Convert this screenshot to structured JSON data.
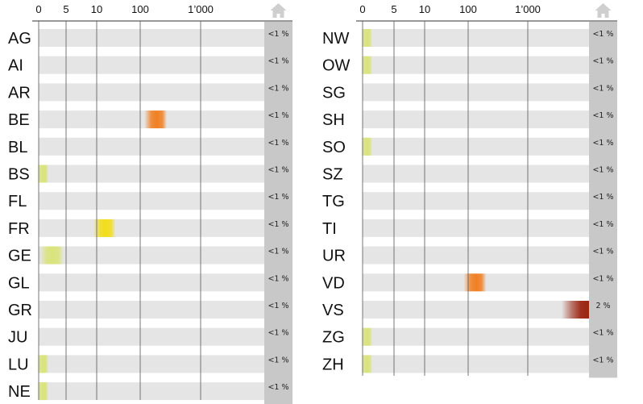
{
  "chart_data": {
    "type": "heatmap",
    "scale": "log-like (0, 5, 10, 100, 1'000)",
    "ticks": [
      "0",
      "5",
      "10",
      "100",
      "1’000"
    ],
    "home_column_icon": "home-icon",
    "colors": {
      "row_background": "#e5e5e5",
      "home_column": "#c8c8c8",
      "low": "#d9e47a",
      "yellow": "#f2dd1a",
      "orange": "#f07f22",
      "dark_red": "#9b2512"
    },
    "panels": [
      {
        "rows": [
          {
            "code": "AG",
            "value": 0,
            "share": "<1 %"
          },
          {
            "code": "AI",
            "value": 0,
            "share": "<1 %"
          },
          {
            "code": "AR",
            "value": 0,
            "share": "<1 %"
          },
          {
            "code": "BE",
            "value": 180,
            "share": "<1 %",
            "color": "orange"
          },
          {
            "code": "BL",
            "value": 0,
            "share": "<1 %"
          },
          {
            "code": "BS",
            "value": 1,
            "share": "<1 %",
            "color": "low"
          },
          {
            "code": "FL",
            "value": 0,
            "share": "<1 %"
          },
          {
            "code": "FR",
            "value": 15,
            "share": "<1 %",
            "color": "yellow"
          },
          {
            "code": "GE",
            "value": 3,
            "share": "<1 %",
            "color": "low"
          },
          {
            "code": "GL",
            "value": 0,
            "share": "<1 %"
          },
          {
            "code": "GR",
            "value": 0,
            "share": "<1 %"
          },
          {
            "code": "JU",
            "value": 0,
            "share": "<1 %"
          },
          {
            "code": "LU",
            "value": 1,
            "share": "<1 %",
            "color": "low"
          },
          {
            "code": "NE",
            "value": 1,
            "share": "<1 %",
            "color": "low"
          }
        ]
      },
      {
        "rows": [
          {
            "code": "NW",
            "value": 1,
            "share": "<1 %",
            "color": "low"
          },
          {
            "code": "OW",
            "value": 1,
            "share": "<1 %",
            "color": "low"
          },
          {
            "code": "SG",
            "value": 0,
            "share": "<1 %"
          },
          {
            "code": "SH",
            "value": 0,
            "share": "<1 %"
          },
          {
            "code": "SO",
            "value": 1,
            "share": "<1 %",
            "color": "low"
          },
          {
            "code": "SZ",
            "value": 0,
            "share": "<1 %"
          },
          {
            "code": "TG",
            "value": 0,
            "share": "<1 %"
          },
          {
            "code": "TI",
            "value": 0,
            "share": "<1 %"
          },
          {
            "code": "UR",
            "value": 0,
            "share": "<1 %"
          },
          {
            "code": "VD",
            "value": 130,
            "share": "<1 %",
            "color": "orange"
          },
          {
            "code": "VS",
            "value": 4000,
            "share": "2 %",
            "color": "dark_red"
          },
          {
            "code": "ZG",
            "value": 1,
            "share": "<1 %",
            "color": "low"
          },
          {
            "code": "ZH",
            "value": 1,
            "share": "<1 %",
            "color": "low"
          }
        ]
      }
    ]
  }
}
